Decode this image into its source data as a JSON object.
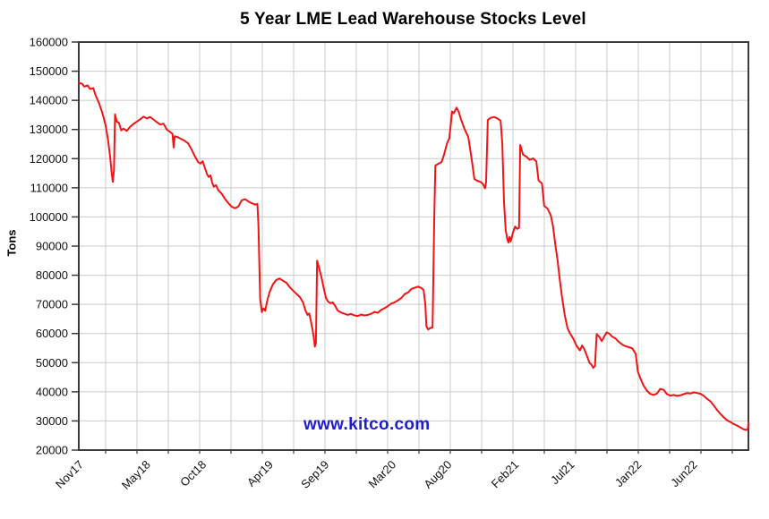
{
  "title": "5 Year LME Lead Warehouse Stocks Level",
  "watermark": {
    "text": "www.kitco.com",
    "color": "#1e1ecf"
  },
  "chart_data": {
    "type": "line",
    "title": "5 Year LME Lead Warehouse Stocks Level",
    "xlabel": "",
    "ylabel": "Tons",
    "ylim": [
      20000,
      160000
    ],
    "ytick_step": 10000,
    "grid": true,
    "legend": "none",
    "line_color": "#f21414",
    "grid_color": "#cbcbcb",
    "frame_color": "#3b3b3b",
    "x_unit": "months since Nov 2017",
    "xlim": [
      0,
      60
    ],
    "xticks": [
      {
        "label": "Nov17",
        "m": 0
      },
      {
        "label": "May18",
        "m": 6
      },
      {
        "label": "Oct18",
        "m": 11
      },
      {
        "label": "Apr19",
        "m": 17
      },
      {
        "label": "Sep19",
        "m": 22
      },
      {
        "label": "Mar20",
        "m": 28
      },
      {
        "label": "Aug20",
        "m": 33
      },
      {
        "label": "Feb21",
        "m": 39
      },
      {
        "label": "Jul21",
        "m": 44
      },
      {
        "label": "Jan22",
        "m": 50
      },
      {
        "label": "Jun22",
        "m": 55
      }
    ],
    "series": [
      {
        "name": "LME Lead warehouse stocks (tons)",
        "points": [
          [
            0,
            146000
          ],
          [
            0.3,
            145700
          ],
          [
            0.5,
            144700
          ],
          [
            0.8,
            145100
          ],
          [
            1.0,
            143900
          ],
          [
            1.3,
            144200
          ],
          [
            1.5,
            141800
          ],
          [
            1.8,
            139200
          ],
          [
            2.1,
            135800
          ],
          [
            2.4,
            131500
          ],
          [
            2.6,
            127000
          ],
          [
            2.8,
            121000
          ],
          [
            2.95,
            115000
          ],
          [
            3.05,
            112000
          ],
          [
            3.15,
            116000
          ],
          [
            3.25,
            135200
          ],
          [
            3.4,
            132700
          ],
          [
            3.6,
            132200
          ],
          [
            3.8,
            129700
          ],
          [
            4.0,
            130300
          ],
          [
            4.3,
            129500
          ],
          [
            4.6,
            130900
          ],
          [
            4.9,
            131900
          ],
          [
            5.2,
            132700
          ],
          [
            5.5,
            133500
          ],
          [
            5.8,
            134400
          ],
          [
            6.1,
            133800
          ],
          [
            6.4,
            134300
          ],
          [
            6.7,
            133400
          ],
          [
            7.0,
            132500
          ],
          [
            7.3,
            131700
          ],
          [
            7.6,
            132000
          ],
          [
            7.9,
            129900
          ],
          [
            8.2,
            129100
          ],
          [
            8.4,
            128500
          ],
          [
            8.5,
            123800
          ],
          [
            8.6,
            127700
          ],
          [
            8.9,
            127300
          ],
          [
            9.2,
            126700
          ],
          [
            9.5,
            126100
          ],
          [
            9.8,
            125200
          ],
          [
            10.1,
            123200
          ],
          [
            10.4,
            120800
          ],
          [
            10.7,
            118800
          ],
          [
            10.9,
            118300
          ],
          [
            11.1,
            119100
          ],
          [
            11.3,
            116800
          ],
          [
            11.5,
            114600
          ],
          [
            11.65,
            113700
          ],
          [
            11.8,
            114300
          ],
          [
            11.95,
            111800
          ],
          [
            12.1,
            110400
          ],
          [
            12.3,
            110900
          ],
          [
            12.5,
            109200
          ],
          [
            12.8,
            108000
          ],
          [
            13.1,
            106200
          ],
          [
            13.4,
            104700
          ],
          [
            13.7,
            103500
          ],
          [
            14.0,
            103000
          ],
          [
            14.3,
            103600
          ],
          [
            14.6,
            105700
          ],
          [
            14.9,
            106100
          ],
          [
            15.2,
            105300
          ],
          [
            15.5,
            104700
          ],
          [
            15.8,
            104200
          ],
          [
            16.0,
            104500
          ],
          [
            16.1,
            97000
          ],
          [
            16.25,
            72000
          ],
          [
            16.4,
            67300
          ],
          [
            16.55,
            68600
          ],
          [
            16.7,
            67800
          ],
          [
            16.9,
            71500
          ],
          [
            17.1,
            74300
          ],
          [
            17.4,
            76900
          ],
          [
            17.7,
            78400
          ],
          [
            18.0,
            78900
          ],
          [
            18.3,
            78100
          ],
          [
            18.6,
            77400
          ],
          [
            18.9,
            75900
          ],
          [
            19.2,
            74700
          ],
          [
            19.5,
            73600
          ],
          [
            19.8,
            72600
          ],
          [
            20.1,
            70600
          ],
          [
            20.3,
            68000
          ],
          [
            20.5,
            66400
          ],
          [
            20.65,
            66900
          ],
          [
            20.8,
            64200
          ],
          [
            20.95,
            61200
          ],
          [
            21.05,
            58800
          ],
          [
            21.15,
            55500
          ],
          [
            21.25,
            56800
          ],
          [
            21.35,
            85000
          ],
          [
            21.55,
            82200
          ],
          [
            21.75,
            79300
          ],
          [
            21.95,
            75600
          ],
          [
            22.15,
            72200
          ],
          [
            22.35,
            70900
          ],
          [
            22.55,
            70400
          ],
          [
            22.75,
            70700
          ],
          [
            22.95,
            69600
          ],
          [
            23.2,
            67900
          ],
          [
            23.5,
            67200
          ],
          [
            23.8,
            66800
          ],
          [
            24.1,
            66400
          ],
          [
            24.4,
            66700
          ],
          [
            24.7,
            66200
          ],
          [
            25.0,
            66000
          ],
          [
            25.3,
            66500
          ],
          [
            25.6,
            66200
          ],
          [
            25.9,
            66400
          ],
          [
            26.2,
            66800
          ],
          [
            26.5,
            67400
          ],
          [
            26.8,
            67100
          ],
          [
            27.1,
            68100
          ],
          [
            27.4,
            68700
          ],
          [
            27.7,
            69400
          ],
          [
            28.0,
            70300
          ],
          [
            28.3,
            70700
          ],
          [
            28.6,
            71400
          ],
          [
            28.9,
            72200
          ],
          [
            29.2,
            73500
          ],
          [
            29.5,
            74100
          ],
          [
            29.8,
            75300
          ],
          [
            30.1,
            75700
          ],
          [
            30.4,
            76100
          ],
          [
            30.7,
            75600
          ],
          [
            30.9,
            74900
          ],
          [
            31.05,
            70000
          ],
          [
            31.15,
            62500
          ],
          [
            31.3,
            61400
          ],
          [
            31.5,
            61900
          ],
          [
            31.7,
            62100
          ],
          [
            31.85,
            100000
          ],
          [
            31.95,
            117600
          ],
          [
            32.2,
            118200
          ],
          [
            32.5,
            118800
          ],
          [
            32.7,
            121000
          ],
          [
            33.0,
            125300
          ],
          [
            33.2,
            127000
          ],
          [
            33.45,
            136200
          ],
          [
            33.6,
            135600
          ],
          [
            33.85,
            137500
          ],
          [
            34.05,
            136000
          ],
          [
            34.25,
            133400
          ],
          [
            34.55,
            130300
          ],
          [
            34.9,
            127400
          ],
          [
            35.2,
            120000
          ],
          [
            35.45,
            113000
          ],
          [
            35.7,
            112400
          ],
          [
            36.0,
            112000
          ],
          [
            36.2,
            111400
          ],
          [
            36.4,
            109800
          ],
          [
            36.5,
            112000
          ],
          [
            36.65,
            133300
          ],
          [
            36.9,
            134000
          ],
          [
            37.2,
            134300
          ],
          [
            37.5,
            133800
          ],
          [
            37.8,
            133000
          ],
          [
            37.95,
            125000
          ],
          [
            38.1,
            105000
          ],
          [
            38.25,
            95400
          ],
          [
            38.4,
            92300
          ],
          [
            38.5,
            91200
          ],
          [
            38.6,
            93100
          ],
          [
            38.7,
            91600
          ],
          [
            38.9,
            94600
          ],
          [
            39.1,
            96700
          ],
          [
            39.3,
            95900
          ],
          [
            39.45,
            96300
          ],
          [
            39.55,
            124700
          ],
          [
            39.8,
            121400
          ],
          [
            40.1,
            120700
          ],
          [
            40.4,
            119600
          ],
          [
            40.7,
            120100
          ],
          [
            41.0,
            119000
          ],
          [
            41.2,
            112500
          ],
          [
            41.5,
            111500
          ],
          [
            41.7,
            103800
          ],
          [
            42.0,
            102900
          ],
          [
            42.3,
            100500
          ],
          [
            42.5,
            96700
          ],
          [
            42.7,
            90500
          ],
          [
            42.9,
            85200
          ],
          [
            43.1,
            78500
          ],
          [
            43.3,
            72500
          ],
          [
            43.55,
            66200
          ],
          [
            43.8,
            61800
          ],
          [
            44.0,
            60200
          ],
          [
            44.3,
            58300
          ],
          [
            44.6,
            55800
          ],
          [
            44.9,
            54200
          ],
          [
            45.1,
            55900
          ],
          [
            45.3,
            54600
          ],
          [
            45.55,
            52100
          ],
          [
            45.75,
            50000
          ],
          [
            45.95,
            49300
          ],
          [
            46.1,
            48200
          ],
          [
            46.25,
            48900
          ],
          [
            46.4,
            59800
          ],
          [
            46.65,
            58800
          ],
          [
            46.85,
            57400
          ],
          [
            47.05,
            58800
          ],
          [
            47.3,
            60400
          ],
          [
            47.55,
            59900
          ],
          [
            47.8,
            58900
          ],
          [
            48.1,
            58300
          ],
          [
            48.4,
            57100
          ],
          [
            48.7,
            56200
          ],
          [
            49.0,
            55600
          ],
          [
            49.3,
            55300
          ],
          [
            49.6,
            54900
          ],
          [
            49.9,
            53000
          ],
          [
            50.1,
            46800
          ],
          [
            50.3,
            44800
          ],
          [
            50.6,
            42200
          ],
          [
            50.9,
            40400
          ],
          [
            51.2,
            39300
          ],
          [
            51.5,
            38900
          ],
          [
            51.8,
            39400
          ],
          [
            52.1,
            41000
          ],
          [
            52.4,
            40700
          ],
          [
            52.7,
            39200
          ],
          [
            53.0,
            38700
          ],
          [
            53.3,
            38900
          ],
          [
            53.6,
            38600
          ],
          [
            53.9,
            38800
          ],
          [
            54.2,
            39200
          ],
          [
            54.5,
            39600
          ],
          [
            54.8,
            39400
          ],
          [
            55.1,
            39800
          ],
          [
            55.4,
            39600
          ],
          [
            55.7,
            39300
          ],
          [
            56.0,
            38600
          ],
          [
            56.3,
            37600
          ],
          [
            56.6,
            36700
          ],
          [
            56.9,
            35300
          ],
          [
            57.2,
            33700
          ],
          [
            57.5,
            32400
          ],
          [
            57.8,
            31200
          ],
          [
            58.1,
            30200
          ],
          [
            58.4,
            29600
          ],
          [
            58.7,
            28900
          ],
          [
            59.0,
            28400
          ],
          [
            59.3,
            27700
          ],
          [
            59.6,
            27100
          ],
          [
            59.8,
            26900
          ],
          [
            59.95,
            27300
          ],
          [
            60.0,
            29400
          ]
        ]
      }
    ]
  }
}
